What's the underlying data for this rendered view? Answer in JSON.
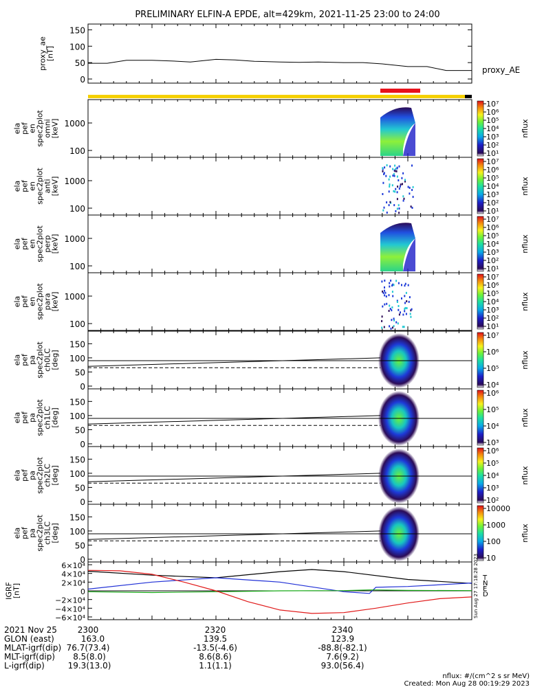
{
  "title": "PRELIMINARY ELFIN-A EPDE, alt=429km, 2021-11-25 23:00 to 24:00",
  "colors": {
    "bar_yellow": "#f5d000",
    "bar_red": "#e8121b",
    "bar_black": "#000000",
    "line": "#000000"
  },
  "chart_data": [
    {
      "id": "proxy_ae",
      "type": "line",
      "ylabel": [
        "proxy_ae",
        "[nT]"
      ],
      "series_label": "proxy_AE",
      "ylim": [
        0,
        155
      ],
      "yticks": [
        "0",
        "50",
        "100",
        "150"
      ],
      "x_minutes": [
        0,
        3,
        6,
        10,
        13,
        16,
        20,
        23,
        26,
        30,
        33,
        36,
        40,
        43,
        46,
        50,
        53,
        56,
        60
      ],
      "values": [
        48,
        48,
        57,
        57,
        55,
        52,
        60,
        58,
        54,
        52,
        51,
        52,
        50,
        50,
        46,
        38,
        38,
        26,
        26
      ]
    },
    {
      "id": "spec_omni",
      "type": "heatmap",
      "ylabel": [
        "ela",
        "pef",
        "en",
        "spec2plot",
        "omni",
        "[keV]"
      ],
      "yticks": [
        "100",
        "1000"
      ],
      "cbar_ticks": [
        "10⁷",
        "10⁶",
        "10⁵",
        "10⁴",
        "10³",
        "10²",
        "10¹"
      ],
      "cbar_label": "nflux"
    },
    {
      "id": "spec_anti",
      "type": "heatmap",
      "ylabel": [
        "ela",
        "pef",
        "en",
        "spec2plot",
        "anti",
        "[keV]"
      ],
      "yticks": [
        "100",
        "1000"
      ],
      "cbar_ticks": [
        "10⁷",
        "10⁶",
        "10⁵",
        "10⁴",
        "10³",
        "10²",
        "10¹"
      ],
      "cbar_label": "nflux"
    },
    {
      "id": "spec_perp",
      "type": "heatmap",
      "ylabel": [
        "ela",
        "pef",
        "en",
        "spec2plot",
        "perp",
        "[keV]"
      ],
      "yticks": [
        "100",
        "1000"
      ],
      "cbar_ticks": [
        "10⁷",
        "10⁶",
        "10⁵",
        "10⁴",
        "10³",
        "10²",
        "10¹"
      ],
      "cbar_label": "nflux"
    },
    {
      "id": "spec_para",
      "type": "heatmap",
      "ylabel": [
        "ela",
        "pef",
        "en",
        "spec2plot",
        "para",
        "[keV]"
      ],
      "yticks": [
        "100",
        "1000"
      ],
      "cbar_ticks": [
        "10⁷",
        "10⁶",
        "10⁵",
        "10⁴",
        "10³",
        "10²",
        "10¹"
      ],
      "cbar_label": "nflux"
    },
    {
      "id": "pa_ch0",
      "type": "heatmap",
      "ylabel": [
        "ela",
        "pef",
        "pa",
        "spec2plot",
        "ch0LC",
        "[deg]"
      ],
      "yticks": [
        "0",
        "50",
        "100",
        "150"
      ],
      "cbar_ticks": [
        "10⁷",
        "10⁶",
        "10⁵",
        "10⁴"
      ],
      "cbar_label": "nflux"
    },
    {
      "id": "pa_ch1",
      "type": "heatmap",
      "ylabel": [
        "ela",
        "pef",
        "pa",
        "spec2plot",
        "ch1LC",
        "[deg]"
      ],
      "yticks": [
        "0",
        "50",
        "100",
        "150"
      ],
      "cbar_ticks": [
        "10⁶",
        "10⁵",
        "10⁴",
        "10³"
      ],
      "cbar_label": "nflux"
    },
    {
      "id": "pa_ch2",
      "type": "heatmap",
      "ylabel": [
        "ela",
        "pef",
        "pa",
        "spec2plot",
        "ch2LC",
        "[deg]"
      ],
      "yticks": [
        "0",
        "50",
        "100",
        "150"
      ],
      "cbar_ticks": [
        "10⁶",
        "10⁵",
        "10⁴",
        "10³",
        "10²"
      ],
      "cbar_label": "nflux"
    },
    {
      "id": "pa_ch3",
      "type": "heatmap",
      "ylabel": [
        "ela",
        "pef",
        "pa",
        "spec2plot",
        "ch3LC",
        "[deg]"
      ],
      "yticks": [
        "0",
        "50",
        "100",
        "150"
      ],
      "cbar_ticks": [
        "10000",
        "1000",
        "100",
        "10"
      ],
      "cbar_label": "nflux"
    },
    {
      "id": "igrf",
      "type": "line",
      "ylabel": [
        "IGRF",
        "[nT]"
      ],
      "ylim": [
        -60000,
        60000
      ],
      "yticks": [
        "6×10⁴",
        "4×10⁴",
        "2×10⁴",
        "0",
        "−2×10⁴",
        "−4×10⁴",
        "−6×10⁴"
      ],
      "series": [
        {
          "name": "T",
          "color": "#000000",
          "x_minutes": [
            0,
            10,
            20,
            30,
            35,
            40,
            50,
            60
          ],
          "values": [
            45000,
            36000,
            30000,
            44000,
            49000,
            44000,
            26000,
            17000
          ]
        },
        {
          "name": "N",
          "color": "#1f2fd6",
          "x_minutes": [
            0,
            10,
            20,
            30,
            40,
            44,
            45,
            50,
            60
          ],
          "values": [
            4000,
            20000,
            30000,
            20000,
            -2000,
            -6000,
            8000,
            10000,
            18000
          ]
        },
        {
          "name": "E",
          "color": "#14a814",
          "x_minutes": [
            0,
            10,
            20,
            30,
            40,
            44,
            45,
            50,
            60
          ],
          "values": [
            -2000,
            -4000,
            -2000,
            0,
            500,
            2000,
            2000,
            1000,
            500
          ]
        },
        {
          "name": "D",
          "color": "#e01818",
          "x_minutes": [
            0,
            5,
            10,
            15,
            20,
            25,
            30,
            35,
            40,
            45,
            50,
            55,
            60
          ],
          "values": [
            47000,
            46000,
            38000,
            20000,
            0,
            -25000,
            -44000,
            -52000,
            -50000,
            -40000,
            -28000,
            -18000,
            -14000
          ]
        }
      ]
    }
  ],
  "ticks": {
    "rows": [
      {
        "label": "2021 Nov 25",
        "values": [
          "2300",
          "2320",
          "2340"
        ]
      },
      {
        "label": "GLON (east)",
        "values": [
          "163.0",
          "139.5",
          "123.9"
        ]
      },
      {
        "label": "MLAT-igrf(dip)",
        "values": [
          "76.7(73.4)",
          "-13.5(-4.6)",
          "-88.8(-82.1)"
        ]
      },
      {
        "label": "MLT-igrf(dip)",
        "values": [
          "8.5(8.0)",
          "8.6(8.6)",
          "7.6(9.2)"
        ]
      },
      {
        "label": "L-igrf(dip)",
        "values": [
          "19.3(13.0)",
          "1.1(1.1)",
          "93.0(56.4)"
        ]
      }
    ]
  },
  "footer": {
    "units": "nflux: #/(cm^2 s sr MeV)",
    "created": "Created: Mon Aug 28 00:19:29 2023"
  },
  "side_stamp": "Sun Aug 27 17:18:28 2023"
}
